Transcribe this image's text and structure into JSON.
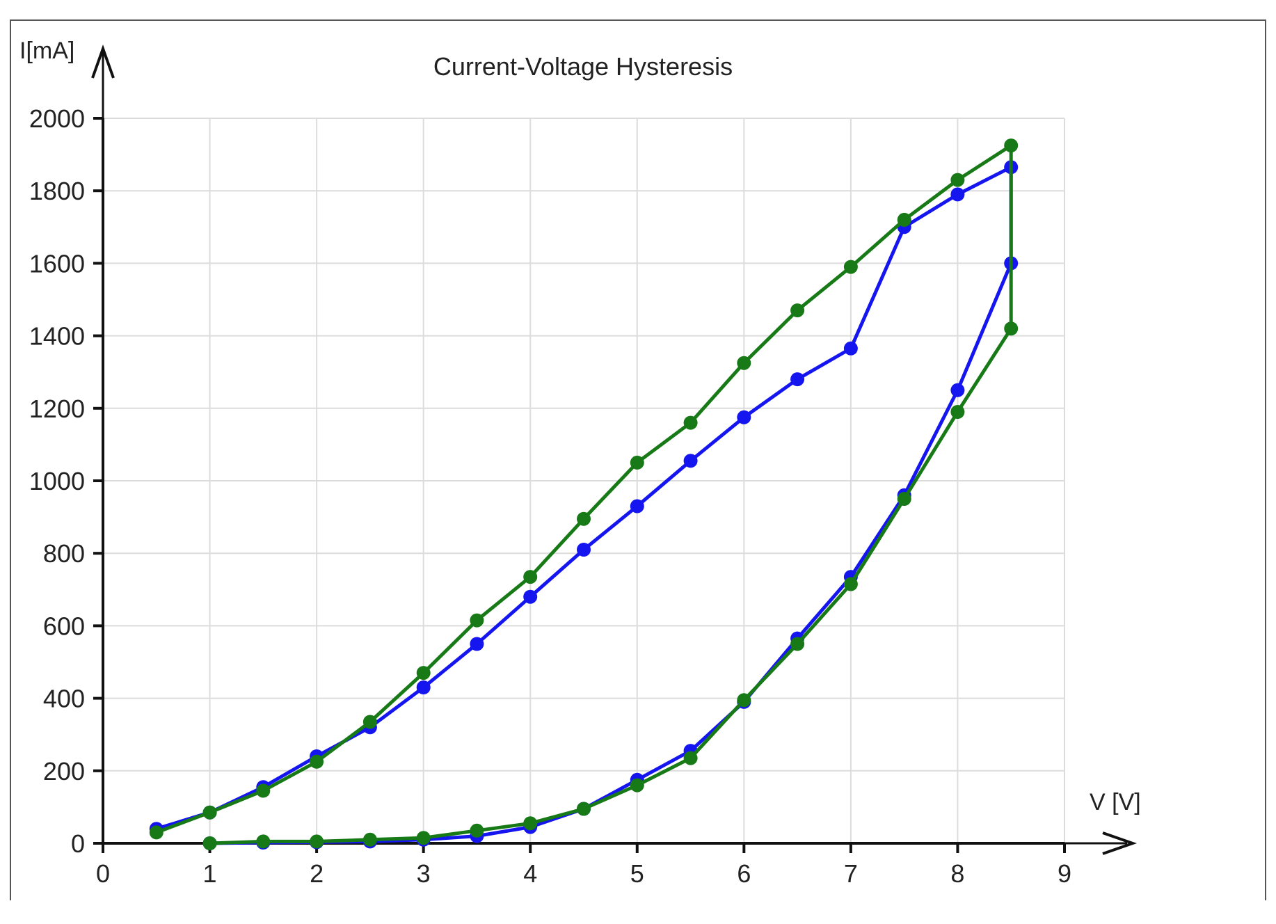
{
  "chart_data": {
    "type": "line",
    "title": "Current-Voltage Hysteresis",
    "xlabel": "V [V]",
    "ylabel": "I[mA]",
    "xlim": [
      0,
      9
    ],
    "ylim": [
      0,
      2000
    ],
    "x_ticks": [
      "0",
      "1",
      "2",
      "3",
      "4",
      "5",
      "6",
      "7",
      "8",
      "9"
    ],
    "y_ticks": [
      "0",
      "200",
      "400",
      "600",
      "800",
      "1000",
      "1200",
      "1400",
      "1600",
      "1800",
      "2000"
    ],
    "grid": true,
    "legend": "none",
    "series": [
      {
        "color": "#1515f0",
        "points": [
          [
            0.5,
            40
          ],
          [
            1,
            85
          ],
          [
            1.5,
            155
          ],
          [
            2,
            240
          ],
          [
            2.5,
            320
          ],
          [
            3,
            430
          ],
          [
            3.5,
            550
          ],
          [
            4,
            680
          ],
          [
            4.5,
            810
          ],
          [
            5,
            930
          ],
          [
            5.5,
            1055
          ],
          [
            6,
            1175
          ],
          [
            6.5,
            1280
          ],
          [
            7,
            1365
          ],
          [
            7.5,
            1700
          ],
          [
            8,
            1790
          ],
          [
            8.5,
            1865
          ],
          [
            8.5,
            1600
          ],
          [
            8,
            1250
          ],
          [
            7.5,
            960
          ],
          [
            7,
            735
          ],
          [
            6.5,
            565
          ],
          [
            6,
            390
          ],
          [
            5.5,
            255
          ],
          [
            5,
            175
          ],
          [
            4.5,
            95
          ],
          [
            4,
            45
          ],
          [
            3.5,
            20
          ],
          [
            3,
            10
          ],
          [
            2.5,
            5
          ],
          [
            2,
            3
          ],
          [
            1.5,
            2
          ],
          [
            1,
            0
          ]
        ]
      },
      {
        "color": "#177a17",
        "points": [
          [
            0.5,
            30
          ],
          [
            1,
            85
          ],
          [
            1.5,
            145
          ],
          [
            2,
            225
          ],
          [
            2.5,
            335
          ],
          [
            3,
            470
          ],
          [
            3.5,
            615
          ],
          [
            4,
            735
          ],
          [
            4.5,
            895
          ],
          [
            5,
            1050
          ],
          [
            5.5,
            1160
          ],
          [
            6,
            1325
          ],
          [
            6.5,
            1470
          ],
          [
            7,
            1590
          ],
          [
            7.5,
            1720
          ],
          [
            8,
            1830
          ],
          [
            8.5,
            1925
          ],
          [
            8.5,
            1420
          ],
          [
            8,
            1190
          ],
          [
            7.5,
            950
          ],
          [
            7,
            715
          ],
          [
            6.5,
            550
          ],
          [
            6,
            395
          ],
          [
            5.5,
            235
          ],
          [
            5,
            160
          ],
          [
            4.5,
            95
          ],
          [
            4,
            55
          ],
          [
            3.5,
            35
          ],
          [
            3,
            15
          ],
          [
            2.5,
            10
          ],
          [
            2,
            5
          ],
          [
            1.5,
            5
          ],
          [
            1,
            0
          ]
        ]
      }
    ]
  }
}
